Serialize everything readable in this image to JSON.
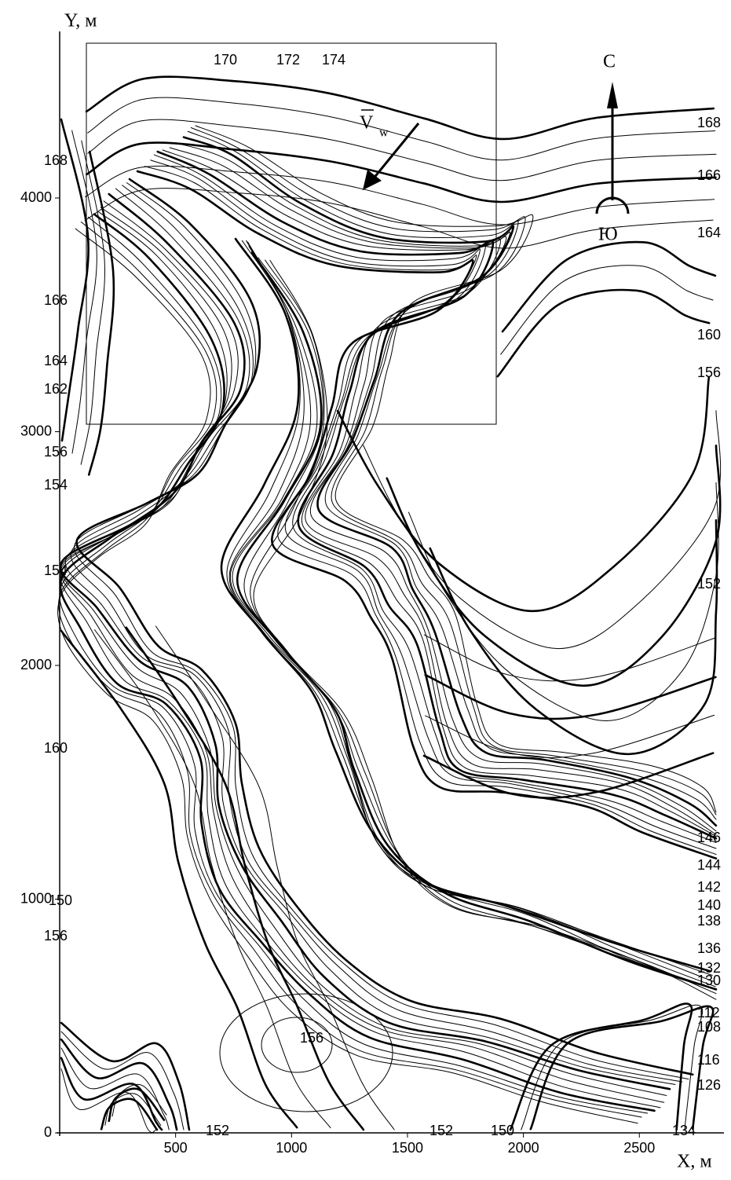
{
  "axes": {
    "x": {
      "label": "X, м",
      "ticks": [
        500,
        1000,
        1500,
        2000,
        2500
      ]
    },
    "y": {
      "label": "Y, м",
      "ticks": [
        0,
        1000,
        2000,
        3000,
        4000
      ]
    }
  },
  "compass": {
    "north": "С",
    "south": "Ю"
  },
  "wind": {
    "symbol": "V",
    "subscript": "w"
  },
  "contour_labels": [
    170,
    172,
    174,
    168,
    166,
    164,
    160,
    156,
    152,
    146,
    144,
    142,
    140,
    138,
    136,
    132,
    130,
    112,
    108,
    116,
    126,
    168,
    166,
    164,
    162,
    156,
    154,
    154,
    160,
    150,
    156,
    156,
    152,
    152,
    150,
    134
  ]
}
